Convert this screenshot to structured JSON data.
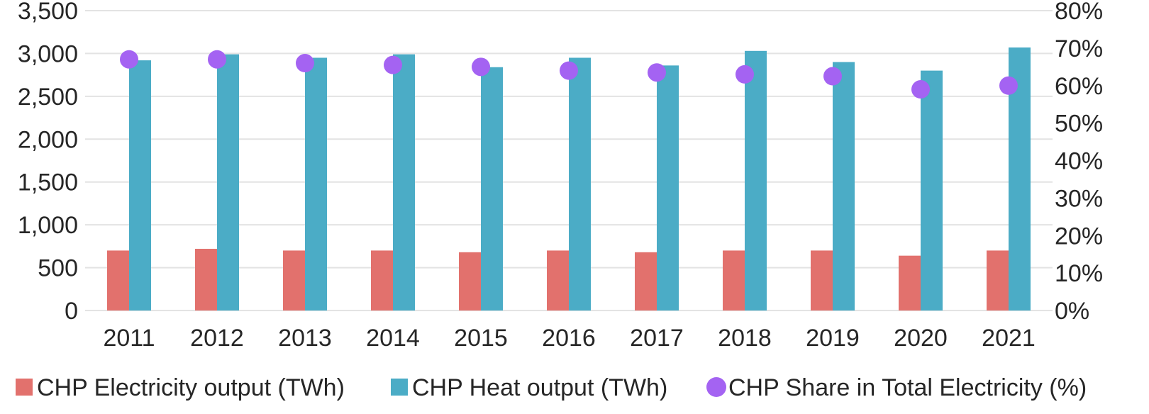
{
  "chart_data": {
    "type": "bar",
    "title": "",
    "xlabel": "",
    "ylabel": "",
    "y2label": "",
    "categories": [
      "2011",
      "2012",
      "2013",
      "2014",
      "2015",
      "2016",
      "2017",
      "2018",
      "2019",
      "2020",
      "2021"
    ],
    "ylim": [
      0,
      3500
    ],
    "y2lim": [
      0,
      80
    ],
    "y_ticks": [
      "0",
      "500",
      "1,000",
      "1,500",
      "2,000",
      "2,500",
      "3,000",
      "3,500"
    ],
    "y2_ticks": [
      "0%",
      "10%",
      "20%",
      "30%",
      "40%",
      "50%",
      "60%",
      "70%",
      "80%"
    ],
    "grid": true,
    "legend_position": "bottom",
    "series": [
      {
        "name": "CHP Electricity output (TWh)",
        "type": "bar",
        "axis": "left",
        "color": "#e2716d",
        "values": [
          700,
          720,
          700,
          700,
          680,
          700,
          680,
          700,
          700,
          640,
          700
        ]
      },
      {
        "name": "CHP Heat output (TWh)",
        "type": "bar",
        "axis": "left",
        "color": "#4bacc6",
        "values": [
          2920,
          2990,
          2950,
          2990,
          2840,
          2950,
          2860,
          3030,
          2900,
          2800,
          3070
        ]
      },
      {
        "name": "CHP Share in Total Electricity (%)",
        "type": "scatter",
        "axis": "right",
        "color": "#a463f2",
        "values": [
          67,
          67,
          66,
          65.5,
          65,
          64,
          63.5,
          63,
          62.5,
          59,
          60
        ]
      }
    ]
  }
}
